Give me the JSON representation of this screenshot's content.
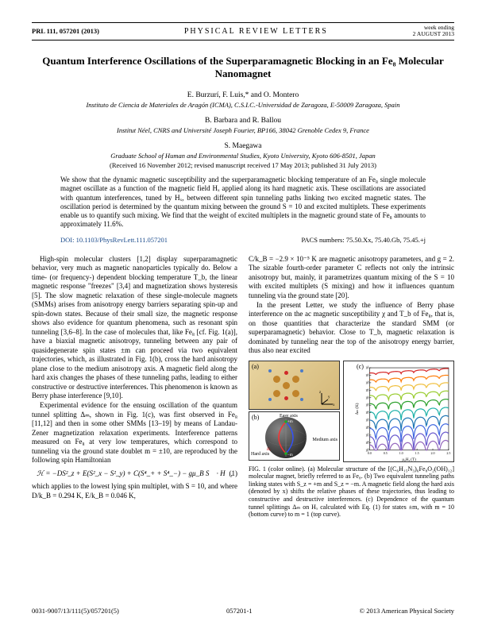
{
  "header": {
    "left": "PRL 111, 057201 (2013)",
    "center": "PHYSICAL REVIEW LETTERS",
    "right_top": "week ending",
    "right_bottom": "2 AUGUST 2013"
  },
  "title": "Quantum Interference Oscillations of the Superparamagnetic Blocking in an Fe₈ Molecular Nanomagnet",
  "authors1": "E. Burzurí, F. Luis,* and O. Montero",
  "affil1": "Instituto de Ciencia de Materiales de Aragón (ICMA), C.S.I.C.-Universidad de Zaragoza, E-50009 Zaragoza, Spain",
  "authors2": "B. Barbara and R. Ballou",
  "affil2": "Institut Néel, CNRS and Université Joseph Fourier, BP166, 38042 Grenoble Cedex 9, France",
  "authors3": "S. Maegawa",
  "affil3": "Graduate School of Human and Environmental Studies, Kyoto University, Kyoto 606-8501, Japan",
  "dates": "(Received 16 November 2012; revised manuscript received 17 May 2013; published 31 July 2013)",
  "abstract": "We show that the dynamic magnetic susceptibility and the superparamagnetic blocking temperature of an Fe₈ single molecule magnet oscillate as a function of the magnetic field Hₓ applied along its hard magnetic axis. These oscillations are associated with quantum interferences, tuned by Hₓ, between different spin tunneling paths linking two excited magnetic states. The oscillation period is determined by the quantum mixing between the ground S = 10 and excited multiplets. These experiments enable us to quantify such mixing. We find that the weight of excited multiplets in the magnetic ground state of Fe₈ amounts to approximately 11.6%.",
  "doi": "DOI: 10.1103/PhysRevLett.111.057201",
  "pacs": "PACS numbers: 75.50.Xx, 75.40.Gb, 75.45.+j",
  "col1_p1": "High-spin molecular clusters [1,2] display superparamagnetic behavior, very much as magnetic nanoparticles typically do. Below a time- (or frequency-) dependent blocking temperature T_b, the linear magnetic response \"freezes\" [3,4] and magnetization shows hysteresis [5]. The slow magnetic relaxation of these single-molecule magnets (SMMs) arises from anisotropy energy barriers separating spin-up and spin-down states. Because of their small size, the magnetic response shows also evidence for quantum phenomena, such as resonant spin tunneling [3,6–8]. In the case of molecules that, like Fe₈ [cf. Fig. 1(a)], have a biaxial magnetic anisotropy, tunneling between any pair of quasidegenerate spin states ±m can proceed via two equivalent trajectories, which, as illustrated in Fig. 1(b), cross the hard anisotropy plane close to the medium anisotropy axis. A magnetic field along the hard axis changes the phases of these tunneling paths, leading to either constructive or destructive interferences. This phenomenon is known as Berry phase interference [9,10].",
  "col1_p2": "Experimental evidence for the ensuing oscillation of the quantum tunnel splitting Δₘ, shown in Fig. 1(c), was first observed in Fe₈ [11,12] and then in some other SMMs [13–19] by means of Landau-Zener magnetization relaxation experiments. Interference patterns measured on Fe₈ at very low temperatures, which correspond to tunneling via the ground state doublet m = ±10, are reproduced by the following spin Hamiltonian",
  "eq1": "ℋ = −DS²_z + E(S²_x − S²_y) + C(S⁴_+ + S⁴_−) − gμ_B S⃗ · H⃗,",
  "eq1num": "(1)",
  "col1_p3": "which applies to the lowest lying spin multiplet, with S = 10, and where D/k_B = 0.294 K, E/k_B = 0.046 K,",
  "col2_p1": "C/k_B = −2.9 × 10⁻⁵ K are magnetic anisotropy parameters, and g = 2. The sizable fourth-order parameter C reflects not only the intrinsic anisotropy but, mainly, it parametrizes quantum mixing of the S = 10 with excited multiplets (S mixing) and how it influences quantum tunneling via the ground state [20].",
  "col2_p2": "In the present Letter, we study the influence of Berry phase interference on the ac magnetic susceptibility χ and T_b of Fe₈, that is, on those quantities that characterize the standard SMM (or superparamagnetic) behavior. Close to T_b, magnetic relaxation is dominated by tunneling near the top of the anisotropy energy barrier, thus also near excited",
  "fig_caption": "FIG. 1 (color online). (a) Molecular structure of the [(C₆H₁₅N₃)₆Fe₈O₂(OH)₁₂] molecular magnet, briefly referred to as Fe₈. (b) Two equivalent tunneling paths linking states with S_z = +m and S_z = −m. A magnetic field along the hard axis (denoted by x) shifts the relative phases of these trajectories, thus leading to constructive and destructive interferences. (c) Dependence of the quantum tunnel splittings Δₘ on Hₓ calculated with Eq. (1) for states ±m, with m = 10 (bottom curve) to m = 1 (top curve).",
  "footer_left": "0031-9007/13/111(5)/057201(5)",
  "footer_center": "057201-1",
  "footer_right": "© 2013 American Physical Society",
  "chart": {
    "ylabel": "Δₘ (K)",
    "xlabel": "μ₀Hₓ (T)",
    "xlim": [
      0,
      2.5
    ],
    "xticks": [
      0,
      0.5,
      1.0,
      1.5,
      2.0,
      2.5
    ],
    "ylim_log": [
      -9,
      2
    ],
    "yticks_log": [
      -9,
      -8,
      -7,
      -6,
      -5,
      -4,
      -3,
      -2,
      -1,
      0,
      1,
      2
    ],
    "background": "#ffffff",
    "colors": [
      "#d62728",
      "#ff7f0e",
      "#f0c040",
      "#9acd32",
      "#2ca02c",
      "#20b2aa",
      "#1f77b4",
      "#4169e1",
      "#6a5acd",
      "#9467bd"
    ],
    "line_width": 1.2,
    "curves": [
      {
        "base_log": 1.3,
        "amp_log": 0.2,
        "period": 0.4
      },
      {
        "base_log": 0.4,
        "amp_log": 0.3,
        "period": 0.4
      },
      {
        "base_log": -0.6,
        "amp_log": 0.4,
        "period": 0.4
      },
      {
        "base_log": -1.7,
        "amp_log": 0.5,
        "period": 0.4
      },
      {
        "base_log": -2.8,
        "amp_log": 0.6,
        "period": 0.4
      },
      {
        "base_log": -3.9,
        "amp_log": 0.8,
        "period": 0.4
      },
      {
        "base_log": -5.0,
        "amp_log": 1.0,
        "period": 0.4
      },
      {
        "base_log": -6.1,
        "amp_log": 1.2,
        "period": 0.4
      },
      {
        "base_log": -7.2,
        "amp_log": 1.4,
        "period": 0.4
      },
      {
        "base_log": -8.3,
        "amp_log": 1.6,
        "period": 0.4
      }
    ]
  },
  "panel_b": {
    "easy_axis": "Easy axis",
    "hard_axis": "Hard axis",
    "medium_axis": "Medium axis",
    "z": "z",
    "x": "x",
    "Hx": "Hₓ",
    "minus_m": "−m",
    "plus_m": "+m"
  }
}
